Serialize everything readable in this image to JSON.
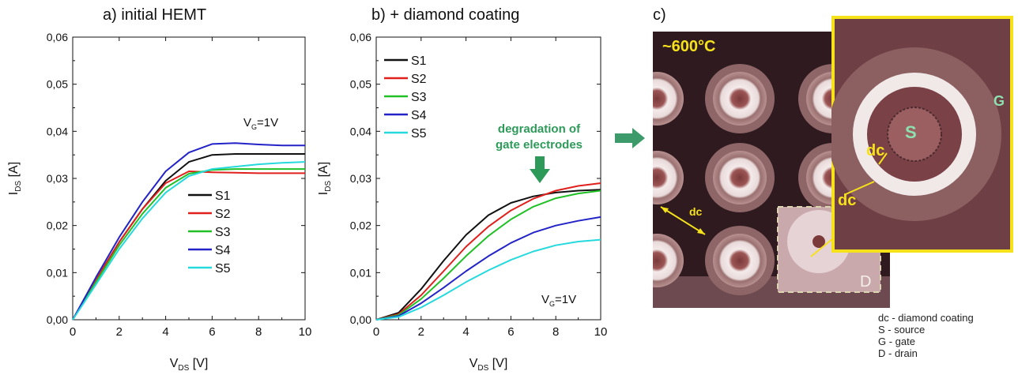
{
  "panels": {
    "a": {
      "title": "a)   initial HEMT"
    },
    "b": {
      "title": "b) + diamond coating"
    },
    "c": {
      "label": "c)",
      "temperature": "~600°C",
      "legend": [
        "dc - diamond coating",
        "S - source",
        "G - gate",
        "D - drain"
      ],
      "markers": {
        "dc": "dc",
        "S": "S",
        "G": "G",
        "D": "D"
      }
    }
  },
  "colors": {
    "S1": "#111111",
    "S2": "#e0201c",
    "S3": "#22c027",
    "S4": "#2323c8",
    "S5": "#26d9dc",
    "annotation": "#2e9a5a",
    "callout": "#f5e21b"
  },
  "chart_data": [
    {
      "type": "line",
      "title": "a)   initial HEMT",
      "xlabel": "V_DS [V]",
      "ylabel": "I_DS [A]",
      "xlim": [
        0,
        10
      ],
      "ylim": [
        0,
        0.06
      ],
      "xticks": [
        "0",
        "2",
        "4",
        "6",
        "8",
        "10"
      ],
      "yticks": [
        "0,00",
        "0,01",
        "0,02",
        "0,03",
        "0,04",
        "0,05",
        "0,06"
      ],
      "annotation": "V_G=1V",
      "legend_position": "center",
      "series": [
        {
          "name": "S1",
          "color": "#111111",
          "x": [
            0,
            1,
            2,
            3,
            4,
            5,
            6,
            7,
            8,
            9,
            10
          ],
          "y": [
            0,
            0.0085,
            0.0165,
            0.0235,
            0.0295,
            0.0335,
            0.035,
            0.0352,
            0.0352,
            0.0352,
            0.0352
          ]
        },
        {
          "name": "S2",
          "color": "#e0201c",
          "x": [
            0,
            1,
            2,
            3,
            4,
            5,
            6,
            7,
            8,
            9,
            10
          ],
          "y": [
            0,
            0.0085,
            0.0165,
            0.0235,
            0.029,
            0.0315,
            0.0313,
            0.0312,
            0.0311,
            0.0311,
            0.0311
          ]
        },
        {
          "name": "S3",
          "color": "#22c027",
          "x": [
            0,
            1,
            2,
            3,
            4,
            5,
            6,
            7,
            8,
            9,
            10
          ],
          "y": [
            0,
            0.008,
            0.0158,
            0.0225,
            0.028,
            0.031,
            0.0318,
            0.032,
            0.032,
            0.032,
            0.032
          ]
        },
        {
          "name": "S4",
          "color": "#2323c8",
          "x": [
            0,
            1,
            2,
            3,
            4,
            5,
            6,
            7,
            8,
            9,
            10
          ],
          "y": [
            0,
            0.009,
            0.0175,
            0.025,
            0.0315,
            0.0355,
            0.0373,
            0.0375,
            0.0372,
            0.037,
            0.037
          ]
        },
        {
          "name": "S5",
          "color": "#26d9dc",
          "x": [
            0,
            1,
            2,
            3,
            4,
            5,
            6,
            7,
            8,
            9,
            10
          ],
          "y": [
            0,
            0.0075,
            0.015,
            0.0215,
            0.027,
            0.0305,
            0.032,
            0.0325,
            0.033,
            0.0333,
            0.0335
          ]
        }
      ]
    },
    {
      "type": "line",
      "title": "b) + diamond coating",
      "xlabel": "V_DS [V]",
      "ylabel": "I_DS [A]",
      "xlim": [
        0,
        10
      ],
      "ylim": [
        0,
        0.06
      ],
      "xticks": [
        "0",
        "2",
        "4",
        "6",
        "8",
        "10"
      ],
      "yticks": [
        "0,00",
        "0,01",
        "0,02",
        "0,03",
        "0,04",
        "0,05",
        "0,06"
      ],
      "annotation": "V_G=1V",
      "note": "degradation of gate electrodes",
      "legend_position": "top-left",
      "series": [
        {
          "name": "S1",
          "color": "#111111",
          "x": [
            0,
            1,
            2,
            3,
            4,
            5,
            6,
            7,
            8,
            9,
            10
          ],
          "y": [
            0,
            0.0015,
            0.0065,
            0.0125,
            0.018,
            0.0222,
            0.0248,
            0.0262,
            0.027,
            0.0274,
            0.0276
          ]
        },
        {
          "name": "S2",
          "color": "#e0201c",
          "x": [
            0,
            1,
            2,
            3,
            4,
            5,
            6,
            7,
            8,
            9,
            10
          ],
          "y": [
            0,
            0.0012,
            0.0052,
            0.0103,
            0.0155,
            0.0198,
            0.0232,
            0.0257,
            0.0274,
            0.0284,
            0.029
          ]
        },
        {
          "name": "S3",
          "color": "#22c027",
          "x": [
            0,
            1,
            2,
            3,
            4,
            5,
            6,
            7,
            8,
            9,
            10
          ],
          "y": [
            0,
            0.001,
            0.0044,
            0.0088,
            0.0135,
            0.0178,
            0.0213,
            0.024,
            0.0258,
            0.0268,
            0.0274
          ]
        },
        {
          "name": "S4",
          "color": "#2323c8",
          "x": [
            0,
            1,
            2,
            3,
            4,
            5,
            6,
            7,
            8,
            9,
            10
          ],
          "y": [
            0,
            0.0008,
            0.0035,
            0.0068,
            0.0103,
            0.0135,
            0.0163,
            0.0185,
            0.02,
            0.021,
            0.0218
          ]
        },
        {
          "name": "S5",
          "color": "#26d9dc",
          "x": [
            0,
            1,
            2,
            3,
            4,
            5,
            6,
            7,
            8,
            9,
            10
          ],
          "y": [
            0,
            0.0006,
            0.0026,
            0.0052,
            0.008,
            0.0105,
            0.0127,
            0.0145,
            0.0158,
            0.0166,
            0.017
          ]
        }
      ]
    }
  ]
}
